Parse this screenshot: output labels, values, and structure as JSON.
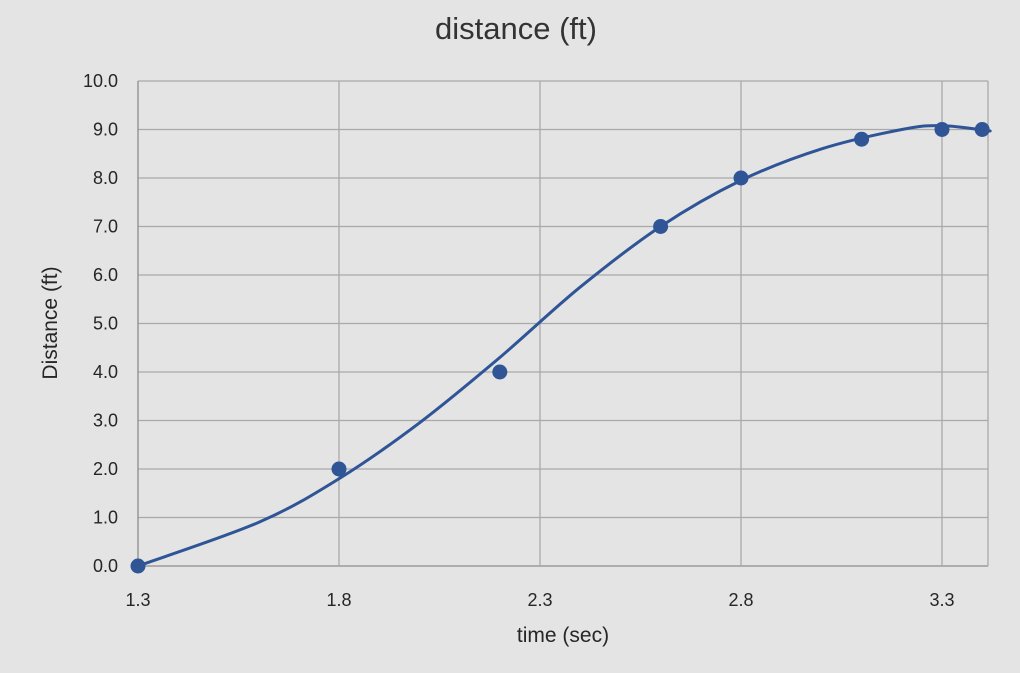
{
  "chart_data": {
    "type": "scatter",
    "title": "distance (ft)",
    "xlabel": "time (sec)",
    "ylabel": "Distance (ft)",
    "xlim": [
      1.3,
      3.42
    ],
    "ylim": [
      0,
      10
    ],
    "x_ticks": [
      "1.3",
      "1.8",
      "2.3",
      "2.8",
      "3.3"
    ],
    "y_ticks": [
      "0.0",
      "1.0",
      "2.0",
      "3.0",
      "4.0",
      "5.0",
      "6.0",
      "7.0",
      "8.0",
      "9.0",
      "10.0"
    ],
    "grid": true,
    "legend": "none",
    "series": [
      {
        "points": [
          {
            "x": 1.3,
            "y": 0.0
          },
          {
            "x": 1.8,
            "y": 2.0
          },
          {
            "x": 2.2,
            "y": 4.0
          },
          {
            "x": 2.6,
            "y": 7.0
          },
          {
            "x": 2.8,
            "y": 8.0
          },
          {
            "x": 3.1,
            "y": 8.8
          },
          {
            "x": 3.3,
            "y": 9.0
          },
          {
            "x": 3.4,
            "y": 9.0
          }
        ],
        "color": "#2f5597"
      }
    ],
    "trendline": {
      "type": "polynomial",
      "color": "#2f5597",
      "points": [
        {
          "x": 1.3,
          "y": 0.0
        },
        {
          "x": 1.6,
          "y": 0.9
        },
        {
          "x": 1.8,
          "y": 1.8
        },
        {
          "x": 2.0,
          "y": 2.95
        },
        {
          "x": 2.2,
          "y": 4.3
        },
        {
          "x": 2.4,
          "y": 5.75
        },
        {
          "x": 2.6,
          "y": 7.0
        },
        {
          "x": 2.8,
          "y": 7.95
        },
        {
          "x": 3.0,
          "y": 8.6
        },
        {
          "x": 3.2,
          "y": 9.0
        },
        {
          "x": 3.3,
          "y": 9.08
        },
        {
          "x": 3.42,
          "y": 8.97
        }
      ]
    }
  }
}
